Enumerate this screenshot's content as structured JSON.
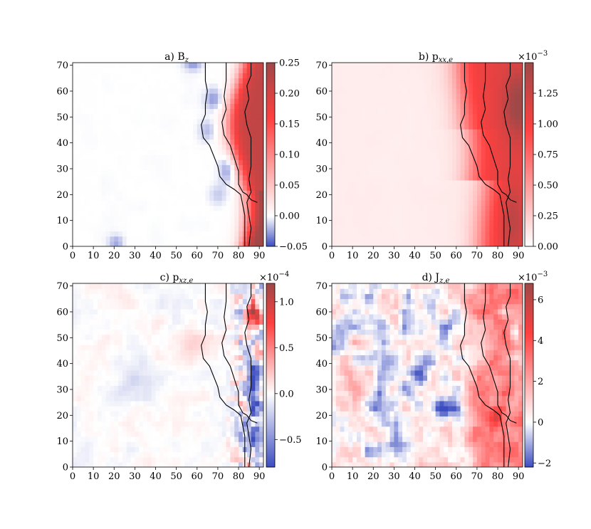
{
  "chart_data": [
    {
      "type": "heatmap",
      "panel": "a",
      "title": "a) B",
      "title_subscript": "z",
      "xlim": [
        0,
        92
      ],
      "ylim": [
        0,
        71
      ],
      "xticks": [
        "0",
        "10",
        "20",
        "30",
        "40",
        "50",
        "60",
        "70",
        "80",
        "90"
      ],
      "yticks": [
        "0",
        "10",
        "20",
        "30",
        "40",
        "50",
        "60",
        "70"
      ],
      "colorbar": {
        "range": [
          -0.05,
          0.25
        ],
        "ticks": [
          "−0.05",
          "0.00",
          "0.05",
          "0.10",
          "0.15",
          "0.20",
          "0.25"
        ],
        "tick_values": [
          -0.05,
          0.0,
          0.05,
          0.1,
          0.15,
          0.2,
          0.25
        ],
        "multiplier": "",
        "colormap": "bwr"
      },
      "field": "bz"
    },
    {
      "type": "heatmap",
      "panel": "b",
      "title": "b) p",
      "title_subscript": "xx,e",
      "xlim": [
        0,
        92
      ],
      "ylim": [
        0,
        71
      ],
      "xticks": [
        "0",
        "10",
        "20",
        "30",
        "40",
        "50",
        "60",
        "70",
        "80",
        "90"
      ],
      "yticks": [
        "0",
        "10",
        "20",
        "30",
        "40",
        "50",
        "60",
        "70"
      ],
      "colorbar": {
        "range": [
          0.0,
          1.5
        ],
        "ticks": [
          "0.00",
          "0.25",
          "0.50",
          "0.75",
          "1.00",
          "1.25"
        ],
        "tick_values": [
          0.0,
          0.25,
          0.5,
          0.75,
          1.0,
          1.25
        ],
        "multiplier": "×10",
        "multiplier_exponent": "−3",
        "colormap": "upper-half bwr"
      },
      "field": "pxx"
    },
    {
      "type": "heatmap",
      "panel": "c",
      "title": "c) p",
      "title_subscript": "xz,e",
      "xlim": [
        0,
        92
      ],
      "ylim": [
        0,
        71
      ],
      "xticks": [
        "0",
        "10",
        "20",
        "30",
        "40",
        "50",
        "60",
        "70",
        "80",
        "90"
      ],
      "yticks": [
        "0",
        "10",
        "20",
        "30",
        "40",
        "50",
        "60",
        "70"
      ],
      "colorbar": {
        "range": [
          -0.8,
          1.2
        ],
        "ticks": [
          "−0.5",
          "0.0",
          "0.5",
          "1.0"
        ],
        "tick_values": [
          -0.5,
          0.0,
          0.5,
          1.0
        ],
        "multiplier": "×10",
        "multiplier_exponent": "−4",
        "colormap": "bwr"
      },
      "field": "pxz"
    },
    {
      "type": "heatmap",
      "panel": "d",
      "title": "d) J",
      "title_subscript": "z,e",
      "xlim": [
        0,
        92
      ],
      "ylim": [
        0,
        71
      ],
      "xticks": [
        "0",
        "10",
        "20",
        "30",
        "40",
        "50",
        "60",
        "70",
        "80",
        "90"
      ],
      "yticks": [
        "0",
        "10",
        "20",
        "30",
        "40",
        "50",
        "60",
        "70"
      ],
      "colorbar": {
        "range": [
          -2.2,
          6.8
        ],
        "ticks": [
          "−2",
          "0",
          "2",
          "4",
          "6"
        ],
        "tick_values": [
          -2,
          0,
          2,
          4,
          6
        ],
        "multiplier": "×10",
        "multiplier_exponent": "−3",
        "colormap": "bwr"
      },
      "field": "jz"
    }
  ],
  "contours": [
    [
      [
        64,
        71
      ],
      [
        64,
        64
      ],
      [
        65,
        60
      ],
      [
        64,
        55
      ],
      [
        64,
        51
      ],
      [
        62,
        47
      ],
      [
        63,
        42
      ],
      [
        66,
        39
      ],
      [
        68,
        35
      ],
      [
        70,
        31
      ],
      [
        71,
        27
      ],
      [
        74,
        24
      ],
      [
        78,
        22
      ],
      [
        81,
        20
      ],
      [
        82,
        16
      ],
      [
        83,
        12
      ],
      [
        83,
        6
      ],
      [
        83,
        0
      ]
    ],
    [
      [
        74,
        71
      ],
      [
        74,
        64
      ],
      [
        73,
        58
      ],
      [
        74,
        53
      ],
      [
        72,
        48
      ],
      [
        73,
        43
      ],
      [
        76,
        39
      ],
      [
        78,
        34
      ],
      [
        80,
        29
      ],
      [
        80,
        24
      ],
      [
        82,
        21
      ],
      [
        84,
        20
      ],
      [
        86,
        18
      ],
      [
        89,
        17
      ]
    ],
    [
      [
        86,
        71
      ],
      [
        86,
        66
      ],
      [
        84,
        62
      ],
      [
        85,
        57
      ],
      [
        83,
        52
      ],
      [
        84,
        47
      ],
      [
        86,
        42
      ],
      [
        86,
        37
      ],
      [
        86,
        31
      ],
      [
        85,
        26
      ],
      [
        86,
        21
      ],
      [
        84,
        17
      ],
      [
        85,
        12
      ],
      [
        86,
        7
      ],
      [
        85,
        0
      ]
    ]
  ]
}
